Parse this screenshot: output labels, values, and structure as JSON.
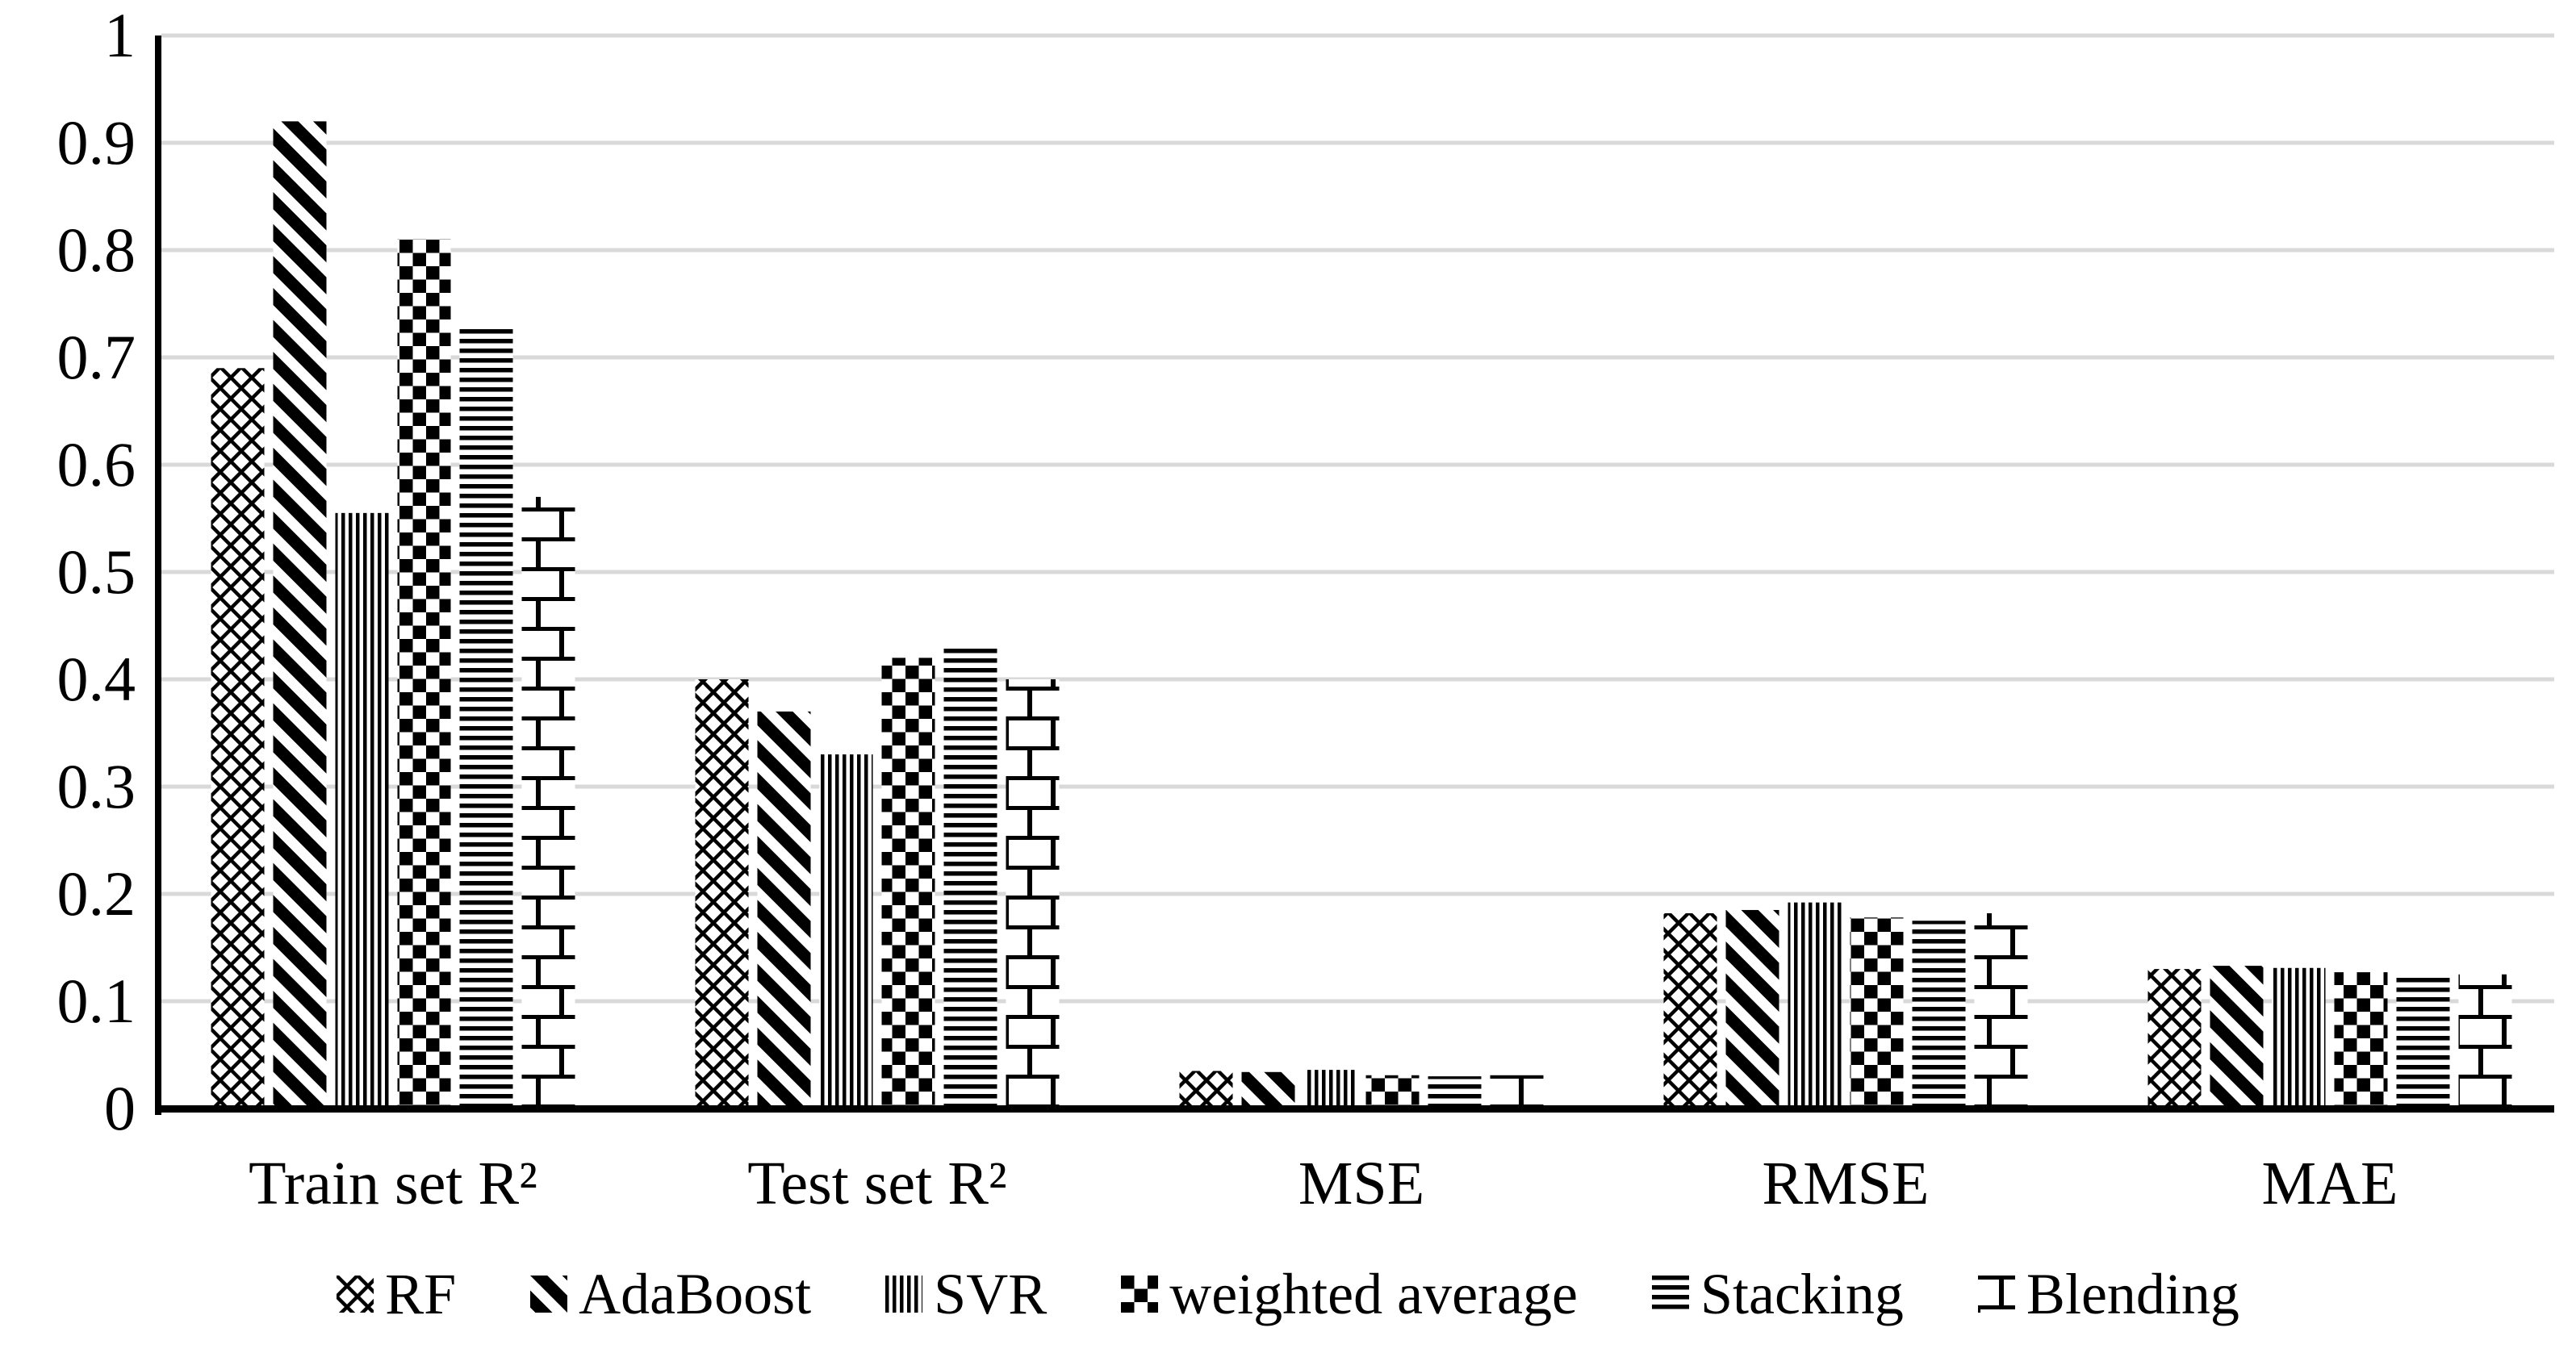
{
  "chart_data": {
    "type": "bar",
    "title": "",
    "xlabel": "",
    "ylabel": "",
    "categories": [
      "Train set R²",
      "Test set R²",
      "MSE",
      "RMSE",
      "MAE"
    ],
    "series": [
      {
        "name": "RF",
        "pattern": "diagonal-crosshatch",
        "values": [
          0.69,
          0.4,
          0.035,
          0.182,
          0.13
        ]
      },
      {
        "name": "AdaBoost",
        "pattern": "diagonal-stripes",
        "values": [
          0.92,
          0.37,
          0.034,
          0.185,
          0.133
        ]
      },
      {
        "name": "SVR",
        "pattern": "vertical-stripes",
        "values": [
          0.555,
          0.33,
          0.036,
          0.192,
          0.131
        ]
      },
      {
        "name": "weighted average",
        "pattern": "checkerboard",
        "values": [
          0.81,
          0.42,
          0.031,
          0.178,
          0.127
        ]
      },
      {
        "name": "Stacking",
        "pattern": "horizontal-stripes",
        "values": [
          0.73,
          0.43,
          0.03,
          0.175,
          0.126
        ]
      },
      {
        "name": "Blending",
        "pattern": "brick",
        "values": [
          0.57,
          0.4,
          0.031,
          0.182,
          0.125
        ]
      }
    ],
    "ylim": [
      0,
      1
    ],
    "ytick_step": 0.1,
    "ytick_labels": [
      "0",
      "0.1",
      "0.2",
      "0.3",
      "0.4",
      "0.5",
      "0.6",
      "0.7",
      "0.8",
      "0.9",
      "1"
    ],
    "grid": true,
    "gridline_color": "#d9d9d9",
    "axis_color": "#000000",
    "bar_foreground": "#000000",
    "bar_background": "#ffffff",
    "legend_position": "bottom"
  }
}
